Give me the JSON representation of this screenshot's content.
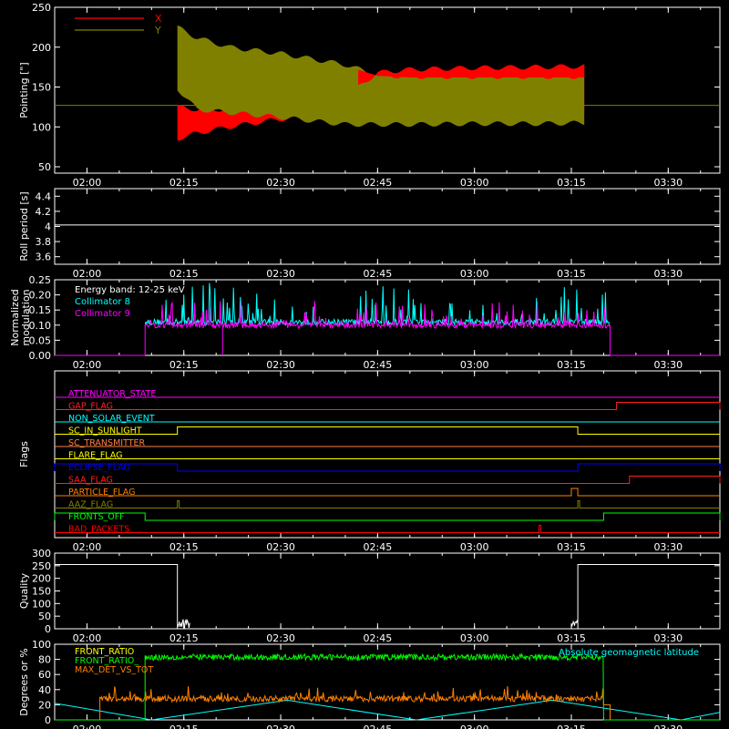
{
  "chart_data": [
    {
      "type": "line",
      "ylabel": "Pointing [\"]",
      "ylim": [
        42,
        250
      ],
      "yticks": [
        50,
        100,
        150,
        200,
        250
      ],
      "x_ticks": [
        "02:00",
        "02:15",
        "02:30",
        "02:45",
        "03:00",
        "03:15",
        "03:30"
      ],
      "legend": [
        {
          "name": "X",
          "color": "#ff0000"
        },
        {
          "name": "Y",
          "color": "#808000"
        }
      ],
      "series": [
        {
          "name": "X",
          "color": "#ff0000",
          "time": [
            "02:14",
            "02:17",
            "02:22",
            "02:30",
            "02:40",
            "02:45",
            "02:50",
            "03:00",
            "03:10",
            "03:17"
          ],
          "upper": [
            125,
            122,
            122,
            128,
            137,
            168,
            172,
            174,
            175,
            176
          ],
          "lower": [
            85,
            92,
            100,
            110,
            113,
            120,
            120,
            120,
            120,
            120
          ]
        },
        {
          "name": "Y",
          "color": "#808000",
          "time": [
            "02:14",
            "02:17",
            "02:22",
            "02:30",
            "02:40",
            "02:45",
            "02:50",
            "03:00",
            "03:10",
            "03:17"
          ],
          "upper": [
            225,
            212,
            200,
            192,
            178,
            165,
            163,
            163,
            163,
            163
          ],
          "lower": [
            148,
            122,
            118,
            112,
            103,
            103,
            103,
            104,
            104,
            105
          ]
        }
      ],
      "baseline": 127
    },
    {
      "type": "line",
      "ylabel": "Roll period [s]",
      "ylim": [
        3.5,
        4.5
      ],
      "yticks": [
        3.6,
        3.8,
        4.0,
        4.2,
        4.4
      ],
      "x_ticks": [
        "02:00",
        "02:15",
        "02:30",
        "02:45",
        "03:00",
        "03:15",
        "03:30"
      ],
      "series": [
        {
          "name": "Roll period",
          "time": [
            "01:55",
            "03:38"
          ],
          "values": [
            4.02,
            4.02
          ],
          "color": "#ffffff"
        }
      ]
    },
    {
      "type": "line",
      "ylabel_lines": [
        "Normalized",
        "modulation"
      ],
      "ylim": [
        0,
        0.25
      ],
      "yticks": [
        "0.00",
        "0.05",
        "0.10",
        "0.15",
        "0.20",
        "0.25"
      ],
      "x_ticks": [
        "02:00",
        "02:15",
        "02:30",
        "02:45",
        "03:00",
        "03:15",
        "03:30"
      ],
      "annotation": "Energy band: 12-25 keV",
      "series": [
        {
          "name": "Collimator 8",
          "color": "#00ffff",
          "time": [
            "02:09",
            "03:21"
          ],
          "mean": 0.11,
          "max": 0.24
        },
        {
          "name": "Collimator 9",
          "color": "#ff00ff",
          "time": [
            "02:09",
            "03:21"
          ],
          "mean": 0.1,
          "max": 0.18
        }
      ],
      "dropout": "02:21"
    },
    {
      "type": "line",
      "ylabel": "Flags",
      "x_ticks": [
        "02:00",
        "02:15",
        "02:30",
        "02:45",
        "03:00",
        "03:15",
        "03:30"
      ],
      "flags": [
        {
          "name": "ATTENUATOR_STATE",
          "color": "#ff00ff",
          "on": []
        },
        {
          "name": "GAP_FLAG",
          "color": "#ff2020",
          "on": [
            [
              "03:22",
              "03:38"
            ]
          ]
        },
        {
          "name": "NON_SOLAR_EVENT",
          "color": "#00ffff",
          "on": []
        },
        {
          "name": "SC_IN_SUNLIGHT",
          "color": "#ffff00",
          "on": [
            [
              "02:14",
              "03:16"
            ]
          ]
        },
        {
          "name": "SC_TRANSMITTER",
          "color": "#ff8040",
          "on": []
        },
        {
          "name": "FLARE_FLAG",
          "color": "#ffff00",
          "on": []
        },
        {
          "name": "ECLIPSE_FLAG",
          "color": "#0000ff",
          "on": [
            [
              "01:55",
              "02:14"
            ],
            [
              "03:16",
              "03:38"
            ]
          ]
        },
        {
          "name": "SAA_FLAG",
          "color": "#ff2020",
          "on": [
            [
              "03:24",
              "03:38"
            ]
          ]
        },
        {
          "name": "PARTICLE_FLAG",
          "color": "#ff8000",
          "on": [
            [
              "03:15",
              "03:16"
            ]
          ]
        },
        {
          "name": "AAZ_FLAG",
          "color": "#808000",
          "on": [
            [
              "02:14",
              "02:14"
            ],
            [
              "03:16",
              "03:16"
            ]
          ]
        },
        {
          "name": "FRONTS_OFF",
          "color": "#00ff00",
          "on": [
            [
              "01:55",
              "02:09"
            ],
            [
              "03:20",
              "03:38"
            ]
          ]
        },
        {
          "name": "BAD_PACKETS",
          "color": "#ff0000",
          "on": [
            [
              "03:10",
              "03:10"
            ]
          ]
        }
      ]
    },
    {
      "type": "line",
      "ylabel": "Quality",
      "ylim": [
        0,
        300
      ],
      "yticks": [
        0,
        50,
        100,
        150,
        200,
        250,
        300
      ],
      "x_ticks": [
        "02:00",
        "02:15",
        "02:30",
        "02:45",
        "03:00",
        "03:15",
        "03:30"
      ],
      "series": [
        {
          "name": "Quality",
          "color": "#ffffff",
          "time": [
            "01:55",
            "02:14",
            "02:14",
            "02:15",
            "03:16",
            "03:16",
            "03:38"
          ],
          "values": [
            255,
            255,
            0,
            0,
            0,
            255,
            255
          ]
        }
      ]
    },
    {
      "type": "line",
      "ylabel": "Degrees or %",
      "ylim": [
        0,
        100
      ],
      "yticks": [
        0,
        20,
        40,
        60,
        80,
        100
      ],
      "x_ticks": [
        "02:00",
        "02:15",
        "02:30",
        "02:45",
        "03:00",
        "03:15",
        "03:30"
      ],
      "legend": [
        {
          "name": "FRONT_RATIO",
          "color": "#ffff00"
        },
        {
          "name": "FRONT_RATIO_",
          "color": "#00ff00"
        },
        {
          "name": "MAX_DET_VS_TOT",
          "color": "#ff8000"
        }
      ],
      "right_label": {
        "text": "Absolute geomagnetic latitude",
        "color": "#00ffff"
      },
      "series": [
        {
          "name": "FRONT_RATIO_",
          "color": "#00ff00",
          "time": [
            "02:09",
            "03:20"
          ],
          "mean": 83
        },
        {
          "name": "MAX_DET_VS_TOT",
          "color": "#ff8000",
          "time": [
            "02:02",
            "03:21"
          ],
          "mean": 28
        },
        {
          "name": "Absolute geomagnetic latitude",
          "color": "#00ffff",
          "time": [
            "01:55",
            "02:10",
            "02:31",
            "02:51",
            "03:12",
            "03:32",
            "03:38"
          ],
          "values": [
            22,
            0,
            26,
            0,
            26,
            0,
            10
          ]
        }
      ]
    }
  ]
}
